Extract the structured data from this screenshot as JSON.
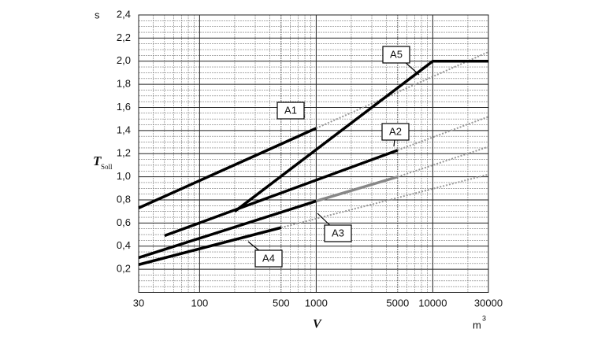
{
  "chart_data": {
    "type": "line",
    "y_unit": "s",
    "y_label": "T",
    "y_label_sub": "Soll",
    "x_label": "V",
    "x_unit": "m",
    "x_unit_sup": "3",
    "xscale": "log",
    "grid": true,
    "minor_grid": true,
    "xlim": [
      30,
      30000
    ],
    "xticks": [
      30,
      100,
      500,
      1000,
      5000,
      10000,
      30000
    ],
    "ylim": [
      0,
      2.4
    ],
    "yticks": [
      {
        "value": 0.2,
        "label": "0,2"
      },
      {
        "value": 0.4,
        "label": "0,4"
      },
      {
        "value": 0.6,
        "label": "0,6"
      },
      {
        "value": 0.8,
        "label": "0,8"
      },
      {
        "value": 1.0,
        "label": "1,0"
      },
      {
        "value": 1.2,
        "label": "1,2"
      },
      {
        "value": 1.4,
        "label": "1,4"
      },
      {
        "value": 1.6,
        "label": "1,6"
      },
      {
        "value": 1.8,
        "label": "1,8"
      },
      {
        "value": 2.0,
        "label": "2,0"
      },
      {
        "value": 2.2,
        "label": "2,2"
      },
      {
        "value": 2.4,
        "label": "2,4"
      }
    ],
    "series": [
      {
        "name": "A1",
        "segments": [
          {
            "color": "#000000",
            "style": "solid",
            "x": [
              30,
              1000
            ],
            "values": [
              0.73,
              1.42
            ]
          },
          {
            "color": "#999999",
            "style": "dotted",
            "x": [
              1000,
              30000
            ],
            "values": [
              1.42,
              2.08
            ]
          }
        ]
      },
      {
        "name": "A2",
        "segments": [
          {
            "color": "#000000",
            "style": "solid",
            "x": [
              50,
              5000
            ],
            "values": [
              0.49,
              1.23
            ]
          },
          {
            "color": "#999999",
            "style": "dotted",
            "x": [
              5000,
              30000
            ],
            "values": [
              1.23,
              1.52
            ]
          }
        ]
      },
      {
        "name": "A3",
        "segments": [
          {
            "color": "#000000",
            "style": "solid",
            "x": [
              30,
              1000
            ],
            "values": [
              0.3,
              0.79
            ]
          },
          {
            "color": "#888888",
            "style": "solid",
            "x": [
              1000,
              5000
            ],
            "values": [
              0.79,
              1.0
            ]
          },
          {
            "color": "#999999",
            "style": "dotted",
            "x": [
              5000,
              30000
            ],
            "values": [
              1.0,
              1.26
            ]
          }
        ]
      },
      {
        "name": "A4",
        "segments": [
          {
            "color": "#000000",
            "style": "solid",
            "x": [
              30,
              500
            ],
            "values": [
              0.24,
              0.56
            ]
          },
          {
            "color": "#999999",
            "style": "dotted",
            "x": [
              500,
              30000
            ],
            "values": [
              0.56,
              1.02
            ]
          }
        ]
      },
      {
        "name": "A5",
        "segments": [
          {
            "color": "#000000",
            "style": "solid",
            "x": [
              200,
              10000,
              30000
            ],
            "values": [
              0.7,
              2.0,
              2.0
            ]
          }
        ]
      }
    ]
  }
}
